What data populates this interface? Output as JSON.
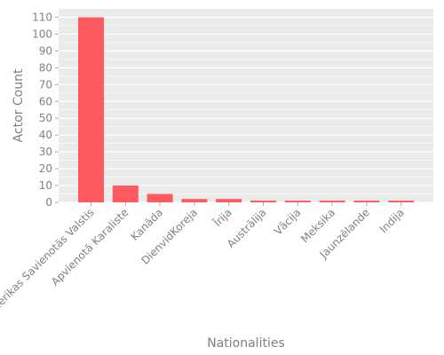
{
  "chart_data": {
    "type": "bar",
    "title": "",
    "xlabel": "Nationalities",
    "ylabel": "Actor Count",
    "categories": [
      "Amerikas Savienotās Valstis",
      "Apvienotā Karaliste",
      "Kanāda",
      "DienvidKoreja",
      "Īrija",
      "Austrālija",
      "Vācija",
      "Meksika",
      "Jaunzēlande",
      "Indija"
    ],
    "values": [
      110,
      10,
      5,
      2,
      2,
      1,
      1,
      1,
      1,
      1
    ],
    "ylim": [
      0,
      115
    ],
    "yticks": [
      0,
      10,
      20,
      30,
      40,
      50,
      60,
      70,
      80,
      90,
      100,
      110
    ],
    "grid": true,
    "bar_color": "#ff5a5f",
    "panel_background": "#ebebeb",
    "grid_color": "#ffffff",
    "text_color": "#808080"
  }
}
